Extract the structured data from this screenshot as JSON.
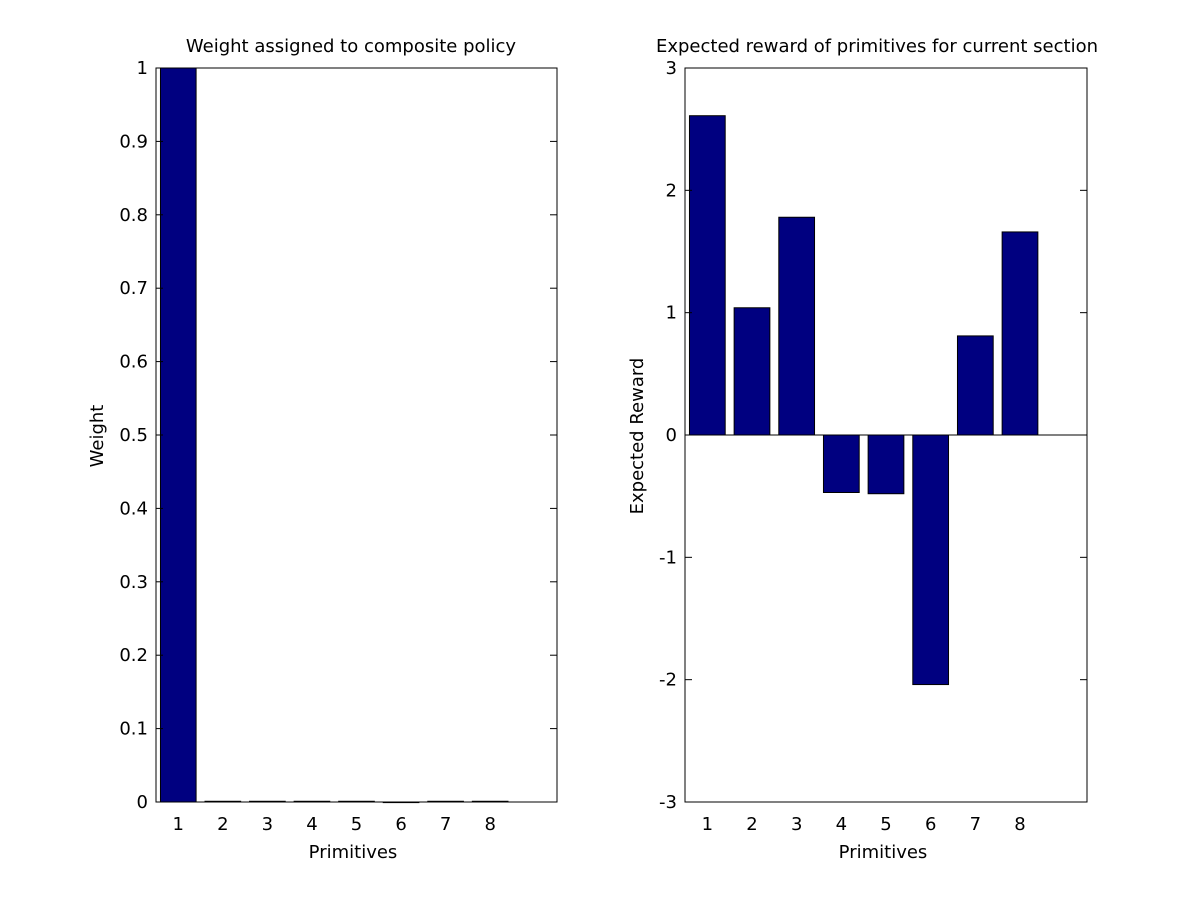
{
  "chart_data": [
    {
      "type": "bar",
      "title": "Weight assigned to composite policy",
      "xlabel": "Primitives",
      "ylabel": "Weight",
      "categories": [
        "1",
        "2",
        "3",
        "4",
        "5",
        "6",
        "7",
        "8"
      ],
      "values": [
        1.0,
        0.001,
        0.001,
        0.001,
        0.001,
        0.0,
        0.001,
        0.001
      ],
      "xlim": [
        0.5,
        9.5
      ],
      "ylim": [
        0,
        1
      ],
      "yticks": [
        "0",
        "0.1",
        "0.2",
        "0.3",
        "0.4",
        "0.5",
        "0.6",
        "0.7",
        "0.8",
        "0.9",
        "1"
      ],
      "bar_color": "#000080",
      "grid": false
    },
    {
      "type": "bar",
      "title": "Expected reward of primitives for current section",
      "xlabel": "Primitives",
      "ylabel": "Expected Reward",
      "categories": [
        "1",
        "2",
        "3",
        "4",
        "5",
        "6",
        "7",
        "8"
      ],
      "values": [
        2.61,
        1.04,
        1.78,
        -0.47,
        -0.48,
        -2.04,
        0.81,
        1.66
      ],
      "xlim": [
        0.5,
        9.5
      ],
      "ylim": [
        -3,
        3
      ],
      "yticks": [
        "-3",
        "-2",
        "-1",
        "0",
        "1",
        "2",
        "3"
      ],
      "bar_color": "#000080",
      "grid": false
    }
  ]
}
